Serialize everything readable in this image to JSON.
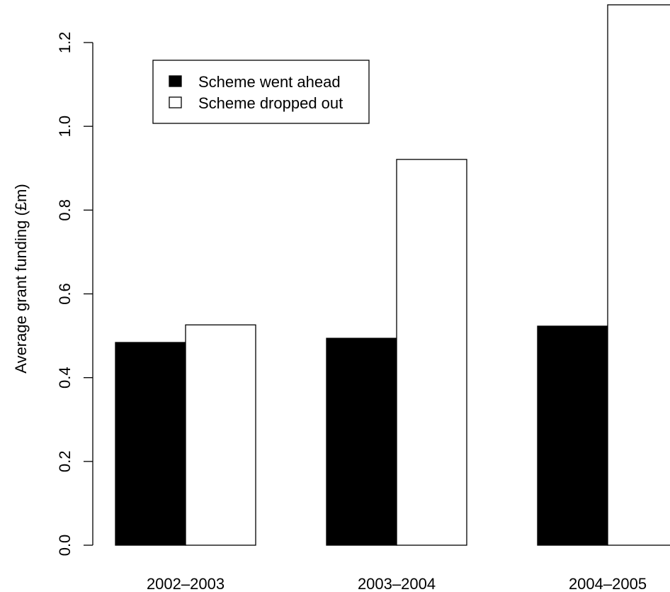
{
  "chart_data": {
    "type": "bar",
    "title": "",
    "xlabel": "",
    "ylabel": "Average grant funding (£m)",
    "categories": [
      "2002–2003",
      "2003–2004",
      "2004–2005"
    ],
    "series": [
      {
        "name": "Scheme went ahead",
        "values": [
          0.484,
          0.494,
          0.523
        ],
        "color": "#000000"
      },
      {
        "name": "Scheme dropped out",
        "values": [
          0.526,
          0.921,
          1.29
        ],
        "color": "#ffffff"
      }
    ],
    "ylim": [
      0,
      1.2
    ],
    "yticks": [
      "0.0",
      "0.2",
      "0.4",
      "0.6",
      "0.8",
      "1.0",
      "1.2"
    ],
    "grid": false,
    "legend": {
      "position": "top-left",
      "entries": [
        "Scheme went ahead",
        "Scheme dropped out"
      ]
    }
  }
}
